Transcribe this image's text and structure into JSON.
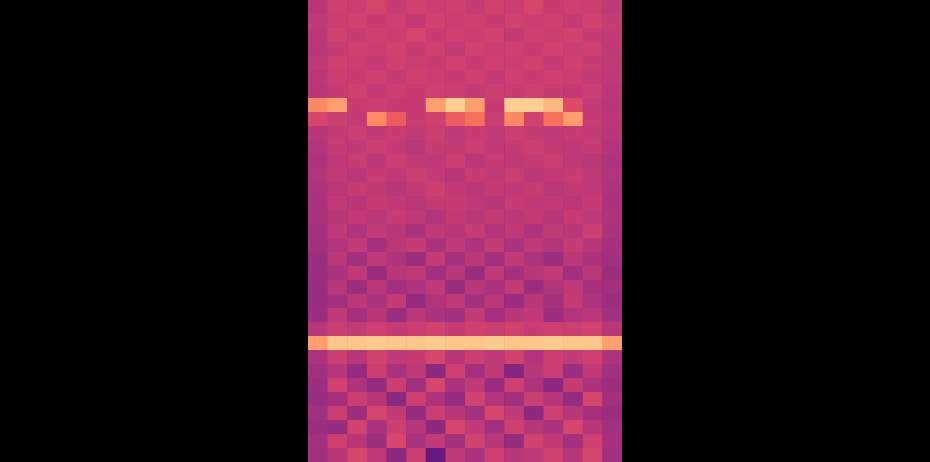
{
  "chart_data": {
    "type": "heatmap",
    "color": "magma",
    "tick_labels": false,
    "zlim": [
      0,
      1
    ],
    "cells": [
      [
        0.5,
        0.56,
        0.55,
        0.58,
        0.54,
        0.57,
        0.55,
        0.56,
        0.53,
        0.57,
        0.55,
        0.58,
        0.54,
        0.56,
        0.55,
        0.52
      ],
      [
        0.52,
        0.55,
        0.57,
        0.54,
        0.56,
        0.53,
        0.57,
        0.55,
        0.56,
        0.54,
        0.57,
        0.55,
        0.56,
        0.53,
        0.57,
        0.54
      ],
      [
        0.51,
        0.57,
        0.54,
        0.56,
        0.55,
        0.58,
        0.54,
        0.56,
        0.55,
        0.57,
        0.53,
        0.56,
        0.55,
        0.57,
        0.54,
        0.53
      ],
      [
        0.5,
        0.54,
        0.56,
        0.55,
        0.57,
        0.54,
        0.56,
        0.53,
        0.57,
        0.55,
        0.56,
        0.54,
        0.57,
        0.55,
        0.56,
        0.52
      ],
      [
        0.52,
        0.56,
        0.55,
        0.53,
        0.56,
        0.55,
        0.54,
        0.57,
        0.54,
        0.56,
        0.55,
        0.57,
        0.53,
        0.56,
        0.54,
        0.53
      ],
      [
        0.51,
        0.55,
        0.54,
        0.56,
        0.53,
        0.56,
        0.55,
        0.54,
        0.56,
        0.53,
        0.56,
        0.54,
        0.56,
        0.55,
        0.53,
        0.52
      ],
      [
        0.5,
        0.54,
        0.56,
        0.53,
        0.55,
        0.54,
        0.56,
        0.55,
        0.53,
        0.55,
        0.54,
        0.56,
        0.54,
        0.53,
        0.55,
        0.51
      ],
      [
        0.75,
        0.8,
        0.54,
        0.55,
        0.53,
        0.54,
        0.8,
        0.9,
        0.8,
        0.54,
        0.9,
        0.9,
        0.85,
        0.6,
        0.53,
        0.5
      ],
      [
        0.58,
        0.55,
        0.53,
        0.75,
        0.65,
        0.54,
        0.56,
        0.65,
        0.7,
        0.55,
        0.75,
        0.57,
        0.7,
        0.8,
        0.54,
        0.51
      ],
      [
        0.5,
        0.53,
        0.55,
        0.52,
        0.54,
        0.53,
        0.55,
        0.52,
        0.54,
        0.53,
        0.55,
        0.53,
        0.52,
        0.54,
        0.53,
        0.5
      ],
      [
        0.49,
        0.54,
        0.52,
        0.55,
        0.53,
        0.51,
        0.54,
        0.53,
        0.55,
        0.52,
        0.53,
        0.55,
        0.53,
        0.52,
        0.54,
        0.49
      ],
      [
        0.48,
        0.52,
        0.54,
        0.51,
        0.55,
        0.53,
        0.52,
        0.55,
        0.51,
        0.54,
        0.52,
        0.53,
        0.55,
        0.52,
        0.51,
        0.48
      ],
      [
        0.49,
        0.53,
        0.51,
        0.54,
        0.52,
        0.55,
        0.53,
        0.5,
        0.54,
        0.53,
        0.55,
        0.51,
        0.53,
        0.54,
        0.52,
        0.49
      ],
      [
        0.48,
        0.51,
        0.54,
        0.52,
        0.5,
        0.53,
        0.55,
        0.52,
        0.51,
        0.54,
        0.52,
        0.54,
        0.51,
        0.53,
        0.52,
        0.48
      ],
      [
        0.47,
        0.53,
        0.5,
        0.54,
        0.52,
        0.51,
        0.53,
        0.54,
        0.52,
        0.5,
        0.54,
        0.52,
        0.53,
        0.51,
        0.54,
        0.47
      ],
      [
        0.47,
        0.5,
        0.53,
        0.51,
        0.54,
        0.52,
        0.49,
        0.53,
        0.51,
        0.54,
        0.51,
        0.53,
        0.5,
        0.54,
        0.52,
        0.48
      ],
      [
        0.46,
        0.52,
        0.48,
        0.53,
        0.5,
        0.47,
        0.52,
        0.5,
        0.54,
        0.49,
        0.52,
        0.48,
        0.53,
        0.5,
        0.55,
        0.47
      ],
      [
        0.45,
        0.49,
        0.53,
        0.46,
        0.51,
        0.54,
        0.47,
        0.52,
        0.48,
        0.53,
        0.47,
        0.52,
        0.49,
        0.54,
        0.5,
        0.46
      ],
      [
        0.44,
        0.51,
        0.45,
        0.52,
        0.48,
        0.44,
        0.53,
        0.46,
        0.51,
        0.45,
        0.52,
        0.48,
        0.44,
        0.51,
        0.47,
        0.45
      ],
      [
        0.44,
        0.47,
        0.52,
        0.43,
        0.5,
        0.52,
        0.45,
        0.5,
        0.43,
        0.52,
        0.46,
        0.5,
        0.53,
        0.45,
        0.51,
        0.44
      ],
      [
        0.43,
        0.5,
        0.44,
        0.51,
        0.45,
        0.48,
        0.52,
        0.43,
        0.5,
        0.47,
        0.53,
        0.44,
        0.49,
        0.52,
        0.46,
        0.45
      ],
      [
        0.43,
        0.45,
        0.51,
        0.47,
        0.53,
        0.42,
        0.49,
        0.52,
        0.45,
        0.51,
        0.43,
        0.5,
        0.46,
        0.53,
        0.48,
        0.44
      ],
      [
        0.44,
        0.52,
        0.46,
        0.5,
        0.44,
        0.51,
        0.47,
        0.45,
        0.53,
        0.46,
        0.5,
        0.52,
        0.44,
        0.49,
        0.51,
        0.45
      ],
      [
        0.5,
        0.55,
        0.53,
        0.56,
        0.54,
        0.55,
        0.57,
        0.54,
        0.56,
        0.55,
        0.57,
        0.54,
        0.56,
        0.55,
        0.57,
        0.5
      ],
      [
        0.8,
        0.88,
        0.88,
        0.89,
        0.88,
        0.88,
        0.89,
        0.88,
        0.88,
        0.89,
        0.88,
        0.88,
        0.89,
        0.88,
        0.88,
        0.8
      ],
      [
        0.48,
        0.55,
        0.5,
        0.57,
        0.52,
        0.54,
        0.58,
        0.5,
        0.55,
        0.52,
        0.57,
        0.49,
        0.55,
        0.53,
        0.56,
        0.48
      ],
      [
        0.45,
        0.5,
        0.42,
        0.55,
        0.47,
        0.52,
        0.4,
        0.56,
        0.46,
        0.52,
        0.38,
        0.5,
        0.55,
        0.44,
        0.52,
        0.45
      ],
      [
        0.44,
        0.57,
        0.48,
        0.42,
        0.55,
        0.45,
        0.58,
        0.47,
        0.52,
        0.43,
        0.56,
        0.48,
        0.4,
        0.54,
        0.47,
        0.44
      ],
      [
        0.43,
        0.46,
        0.55,
        0.5,
        0.4,
        0.56,
        0.48,
        0.42,
        0.57,
        0.49,
        0.45,
        0.55,
        0.5,
        0.42,
        0.58,
        0.45
      ],
      [
        0.45,
        0.55,
        0.44,
        0.58,
        0.52,
        0.42,
        0.55,
        0.5,
        0.46,
        0.58,
        0.52,
        0.4,
        0.56,
        0.5,
        0.46,
        0.44
      ],
      [
        0.44,
        0.42,
        0.57,
        0.47,
        0.55,
        0.5,
        0.4,
        0.58,
        0.52,
        0.45,
        0.56,
        0.5,
        0.47,
        0.58,
        0.5,
        0.45
      ],
      [
        0.46,
        0.56,
        0.5,
        0.44,
        0.58,
        0.47,
        0.52,
        0.45,
        0.57,
        0.5,
        0.42,
        0.57,
        0.52,
        0.45,
        0.56,
        0.46
      ],
      [
        0.45,
        0.5,
        0.58,
        0.52,
        0.4,
        0.55,
        0.3,
        0.52,
        0.47,
        0.56,
        0.5,
        0.52,
        0.57,
        0.5,
        0.58,
        0.45
      ]
    ]
  }
}
